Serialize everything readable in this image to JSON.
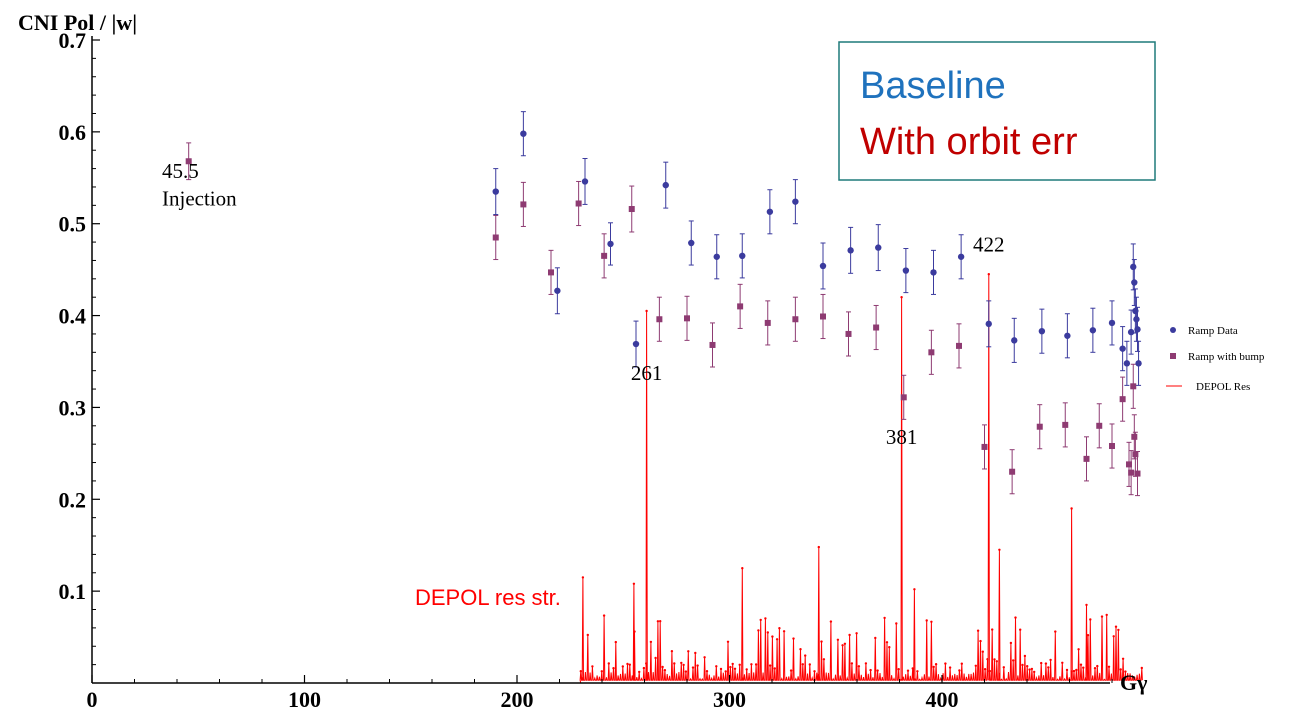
{
  "chart_data": {
    "type": "scatter",
    "ylabel": "CNI Pol / |w|",
    "xlabel": "Gγ",
    "xlim": [
      0,
      495
    ],
    "ylim": [
      0,
      0.7
    ],
    "x_ticks": [
      "0",
      "100",
      "200",
      "300",
      "400"
    ],
    "y_ticks": [
      "0.1",
      "0.2",
      "0.3",
      "0.4",
      "0.5",
      "0.6",
      "0.7"
    ],
    "grid": false,
    "legend_position": "right",
    "colors": {
      "ramp_data": "#3b3b9e",
      "ramp_bump": "#8e3b72",
      "depol": "#ff0000",
      "baseline_text": "#1f72bd",
      "orbit_text": "#c00000",
      "box_border": "#1f7a7a"
    },
    "series": [
      {
        "name": "Ramp Data",
        "marker": "circle",
        "points": [
          [
            190,
            0.535,
            0.025
          ],
          [
            203,
            0.598,
            0.024
          ],
          [
            219,
            0.427,
            0.025
          ],
          [
            232,
            0.546,
            0.025
          ],
          [
            244,
            0.478,
            0.023
          ],
          [
            256,
            0.369,
            0.025
          ],
          [
            270,
            0.542,
            0.025
          ],
          [
            282,
            0.479,
            0.024
          ],
          [
            294,
            0.464,
            0.024
          ],
          [
            306,
            0.465,
            0.024
          ],
          [
            319,
            0.513,
            0.024
          ],
          [
            331,
            0.524,
            0.024
          ],
          [
            344,
            0.454,
            0.025
          ],
          [
            357,
            0.471,
            0.025
          ],
          [
            370,
            0.474,
            0.025
          ],
          [
            383,
            0.449,
            0.024
          ],
          [
            396,
            0.447,
            0.024
          ],
          [
            409,
            0.464,
            0.024
          ],
          [
            422,
            0.391,
            0.025
          ],
          [
            434,
            0.373,
            0.024
          ],
          [
            447,
            0.383,
            0.024
          ],
          [
            459,
            0.378,
            0.024
          ],
          [
            471,
            0.384,
            0.024
          ],
          [
            480,
            0.392,
            0.024
          ],
          [
            485,
            0.364,
            0.024
          ],
          [
            487,
            0.348,
            0.024
          ],
          [
            489,
            0.382,
            0.024
          ],
          [
            490,
            0.453,
            0.025
          ],
          [
            490.5,
            0.436,
            0.025
          ],
          [
            491,
            0.405,
            0.024
          ],
          [
            491.5,
            0.396,
            0.024
          ],
          [
            492,
            0.385,
            0.024
          ],
          [
            492.5,
            0.348,
            0.024
          ]
        ]
      },
      {
        "name": "Ramp with bump",
        "marker": "square",
        "points": [
          [
            45.5,
            0.568,
            0.02
          ],
          [
            190,
            0.485,
            0.024
          ],
          [
            203,
            0.521,
            0.024
          ],
          [
            216,
            0.447,
            0.024
          ],
          [
            229,
            0.522,
            0.024
          ],
          [
            241,
            0.465,
            0.024
          ],
          [
            254,
            0.516,
            0.025
          ],
          [
            267,
            0.396,
            0.024
          ],
          [
            280,
            0.397,
            0.024
          ],
          [
            292,
            0.368,
            0.024
          ],
          [
            305,
            0.41,
            0.024
          ],
          [
            318,
            0.392,
            0.024
          ],
          [
            331,
            0.396,
            0.024
          ],
          [
            344,
            0.399,
            0.024
          ],
          [
            356,
            0.38,
            0.024
          ],
          [
            369,
            0.387,
            0.024
          ],
          [
            382,
            0.311,
            0.024
          ],
          [
            395,
            0.36,
            0.024
          ],
          [
            408,
            0.367,
            0.024
          ],
          [
            420,
            0.257,
            0.024
          ],
          [
            433,
            0.23,
            0.024
          ],
          [
            446,
            0.279,
            0.024
          ],
          [
            458,
            0.281,
            0.024
          ],
          [
            468,
            0.244,
            0.024
          ],
          [
            474,
            0.28,
            0.024
          ],
          [
            480,
            0.258,
            0.024
          ],
          [
            485,
            0.309,
            0.024
          ],
          [
            488,
            0.238,
            0.024
          ],
          [
            489,
            0.229,
            0.024
          ],
          [
            490,
            0.323,
            0.024
          ],
          [
            490.5,
            0.268,
            0.024
          ],
          [
            491,
            0.249,
            0.024
          ],
          [
            492,
            0.228,
            0.024
          ]
        ]
      },
      {
        "name": "DEPOL Res",
        "type": "line"
      }
    ],
    "annotations": [
      {
        "text": "45.5",
        "x": 45.5,
        "y": 0.55
      },
      {
        "text": "Injection",
        "x": 45.5,
        "y": 0.52
      },
      {
        "text": "261",
        "x": 261,
        "y": 0.33
      },
      {
        "text": "381",
        "x": 381,
        "y": 0.26
      },
      {
        "text": "422",
        "x": 422,
        "y": 0.47
      },
      {
        "text": "DEPOL res str.",
        "x": 152,
        "y": 0.085
      }
    ],
    "text_box": {
      "line1": "Baseline",
      "line2": "With orbit err"
    }
  }
}
